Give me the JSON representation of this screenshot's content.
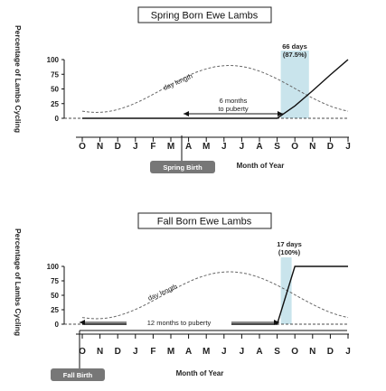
{
  "chart_data": [
    {
      "type": "line",
      "title": "Spring Born Ewe Lambs",
      "ylabel": "Percentage of Lambs Cycling",
      "xlabel": "Month of Year",
      "categories": [
        "O",
        "N",
        "D",
        "J",
        "F",
        "M",
        "A",
        "M",
        "J",
        "J",
        "A",
        "S",
        "O",
        "N",
        "D",
        "J"
      ],
      "yticks": [
        "100",
        "75",
        "50",
        "25",
        "0"
      ],
      "ylim": [
        0,
        100
      ],
      "series": [
        {
          "values": [
            0,
            0,
            0,
            0,
            0,
            0,
            0,
            0,
            0,
            0,
            0,
            0,
            21,
            47,
            74,
            100
          ]
        }
      ],
      "day_length_label": "day length",
      "birth_label": "Spring Birth",
      "birth_month_index": 6,
      "interval_label": "6 months to puberty",
      "interval_lines": [
        "6 months",
        "to puberty"
      ],
      "onset_annotation": [
        "66 days",
        "(87.5%)"
      ],
      "highlight_months": [
        11,
        13
      ]
    },
    {
      "type": "line",
      "title": "Fall Born Ewe Lambs",
      "ylabel": "Percentage of Lambs Cycling",
      "xlabel": "Month of Year",
      "categories": [
        "O",
        "N",
        "D",
        "J",
        "F",
        "M",
        "A",
        "M",
        "J",
        "J",
        "A",
        "S",
        "O",
        "N",
        "D",
        "J"
      ],
      "yticks": [
        "100",
        "75",
        "50",
        "25",
        "0"
      ],
      "ylim": [
        0,
        100
      ],
      "series": [
        {
          "values": [
            0,
            0,
            0,
            0,
            0,
            0,
            0,
            0,
            0,
            0,
            0,
            0,
            100,
            100,
            100,
            100
          ]
        }
      ],
      "day_length_label": "day length",
      "birth_label": "Fall Birth",
      "birth_month_index": 0,
      "interval_label": "12 months to puberty",
      "interval_lines": [
        "12 months to puberty"
      ],
      "onset_annotation": [
        "17 days",
        "(100%)"
      ],
      "highlight_months": [
        11,
        12
      ]
    }
  ],
  "colors": {
    "highlight": "#c9e4ec",
    "daylength": "#666666",
    "badge": "#777777",
    "ink": "#111111"
  }
}
